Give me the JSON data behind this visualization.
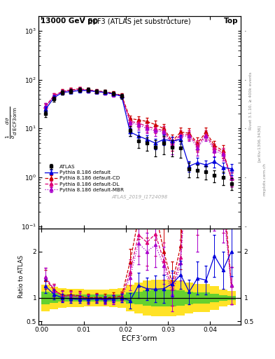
{
  "title_left": "13000 GeV pp",
  "title_right": "Top",
  "plot_title": "ECF3 (ATLAS jet substructure)",
  "xlabel": "ECF3’orm",
  "ylabel_main": "1/σ  dσ/\nd ECF3’orm",
  "ylabel_ratio": "Ratio to ATLAS",
  "right_label_1": "Rivet 3.1.10, ≥ 400k events",
  "right_label_2": "[arXiv:1306.3436]",
  "right_label_3": "mcplots.cern.ch",
  "atlas_label": "ATLAS_2019_I1724098",
  "atlas_x": [
    0.001,
    0.003,
    0.005,
    0.007,
    0.009,
    0.011,
    0.013,
    0.015,
    0.017,
    0.019,
    0.021,
    0.023,
    0.025,
    0.027,
    0.029,
    0.031,
    0.033,
    0.035,
    0.037,
    0.039,
    0.041,
    0.043,
    0.045
  ],
  "atlas_y": [
    20,
    40,
    55,
    58,
    62,
    62,
    58,
    57,
    52,
    46,
    9,
    5.5,
    5.0,
    4.2,
    5.0,
    4.2,
    4.0,
    1.5,
    1.4,
    1.3,
    1.1,
    1.0,
    0.75
  ],
  "atlas_yerr": [
    3,
    5,
    6,
    6,
    6,
    6,
    5,
    5,
    5,
    5,
    2,
    1.5,
    1.5,
    1.5,
    2.0,
    1.5,
    1.5,
    0.5,
    0.4,
    0.4,
    0.3,
    0.3,
    0.2
  ],
  "py_def_x": [
    0.001,
    0.003,
    0.005,
    0.007,
    0.009,
    0.011,
    0.013,
    0.015,
    0.017,
    0.019,
    0.021,
    0.023,
    0.025,
    0.027,
    0.029,
    0.031,
    0.033,
    0.035,
    0.037,
    0.039,
    0.041,
    0.043,
    0.045
  ],
  "py_def_y": [
    25,
    43,
    55,
    57,
    60,
    60,
    57,
    55,
    51,
    46,
    8.5,
    7.0,
    6.0,
    5.0,
    6.0,
    5.5,
    6.0,
    1.7,
    2.0,
    1.8,
    2.1,
    1.6,
    1.5
  ],
  "py_def_yerr": [
    3,
    4,
    5,
    5,
    5,
    5,
    5,
    4,
    4,
    4,
    1.5,
    1.5,
    1.2,
    1.2,
    1.5,
    1.2,
    1.2,
    0.4,
    0.5,
    0.4,
    0.5,
    0.4,
    0.4
  ],
  "py_cd_x": [
    0.001,
    0.003,
    0.005,
    0.007,
    0.009,
    0.011,
    0.013,
    0.015,
    0.017,
    0.019,
    0.021,
    0.023,
    0.025,
    0.027,
    0.029,
    0.031,
    0.033,
    0.035,
    0.037,
    0.039,
    0.041,
    0.043,
    0.045
  ],
  "py_cd_y": [
    28,
    47,
    58,
    62,
    65,
    62,
    59,
    57,
    53,
    48,
    16,
    15,
    14,
    12,
    10,
    5.5,
    8.5,
    8.0,
    5.0,
    8.5,
    4.5,
    3.5,
    0.95
  ],
  "py_cd_yerr": [
    4,
    5,
    6,
    6,
    6,
    6,
    5,
    5,
    5,
    4,
    2.5,
    2.5,
    2.5,
    2.5,
    2.5,
    2.0,
    2.0,
    2.0,
    1.5,
    2.0,
    1.0,
    1.0,
    0.3
  ],
  "py_dl_x": [
    0.001,
    0.003,
    0.005,
    0.007,
    0.009,
    0.011,
    0.013,
    0.015,
    0.017,
    0.019,
    0.021,
    0.023,
    0.025,
    0.027,
    0.029,
    0.031,
    0.033,
    0.035,
    0.037,
    0.039,
    0.041,
    0.043,
    0.045
  ],
  "py_dl_y": [
    29,
    47,
    57,
    61,
    64,
    61,
    58,
    55,
    51,
    47,
    14,
    13,
    11,
    10,
    9.0,
    5.0,
    7.5,
    7.5,
    4.5,
    7.5,
    4.0,
    3.2,
    0.95
  ],
  "py_dl_yerr": [
    4,
    5,
    6,
    6,
    6,
    6,
    5,
    5,
    5,
    4,
    2.5,
    2.5,
    2.5,
    2.0,
    2.0,
    1.5,
    1.5,
    1.5,
    1.2,
    1.5,
    0.8,
    0.8,
    0.3
  ],
  "py_mbr_x": [
    0.001,
    0.003,
    0.005,
    0.007,
    0.009,
    0.011,
    0.013,
    0.015,
    0.017,
    0.019,
    0.021,
    0.023,
    0.025,
    0.027,
    0.029,
    0.031,
    0.033,
    0.035,
    0.037,
    0.039,
    0.041,
    0.043,
    0.045
  ],
  "py_mbr_y": [
    29,
    46,
    57,
    60,
    63,
    60,
    57,
    54,
    50,
    46,
    13,
    12,
    10,
    9.0,
    8.5,
    4.5,
    7.0,
    7.0,
    4.0,
    7.0,
    3.5,
    3.0,
    0.95
  ],
  "py_mbr_yerr": [
    4,
    5,
    6,
    6,
    6,
    6,
    5,
    5,
    5,
    4,
    2.5,
    2.5,
    2.0,
    2.0,
    2.0,
    1.5,
    1.5,
    1.5,
    1.2,
    1.5,
    0.8,
    0.8,
    0.3
  ],
  "yb_edges": [
    0.0,
    0.002,
    0.004,
    0.006,
    0.008,
    0.01,
    0.012,
    0.014,
    0.016,
    0.018,
    0.02,
    0.022,
    0.024,
    0.026,
    0.028,
    0.03,
    0.032,
    0.034,
    0.036,
    0.038,
    0.04,
    0.042,
    0.044,
    0.046
  ],
  "yb_lo": [
    0.72,
    0.76,
    0.79,
    0.81,
    0.81,
    0.82,
    0.82,
    0.82,
    0.81,
    0.79,
    0.72,
    0.67,
    0.62,
    0.6,
    0.6,
    0.6,
    0.62,
    0.67,
    0.7,
    0.7,
    0.75,
    0.82,
    0.85,
    0.85
  ],
  "yb_hi": [
    1.28,
    1.24,
    1.21,
    1.19,
    1.19,
    1.18,
    1.18,
    1.18,
    1.19,
    1.21,
    1.28,
    1.33,
    1.38,
    1.4,
    1.4,
    1.4,
    1.38,
    1.33,
    1.3,
    1.3,
    1.25,
    1.18,
    1.15,
    1.15
  ],
  "gb_lo": [
    0.86,
    0.9,
    0.92,
    0.93,
    0.93,
    0.93,
    0.93,
    0.93,
    0.93,
    0.92,
    0.88,
    0.86,
    0.83,
    0.82,
    0.82,
    0.82,
    0.83,
    0.86,
    0.88,
    0.88,
    0.91,
    0.94,
    0.95,
    0.95
  ],
  "gb_hi": [
    1.14,
    1.1,
    1.08,
    1.07,
    1.07,
    1.07,
    1.07,
    1.07,
    1.07,
    1.08,
    1.12,
    1.14,
    1.17,
    1.18,
    1.18,
    1.18,
    1.17,
    1.14,
    1.12,
    1.12,
    1.09,
    1.06,
    1.05,
    1.05
  ],
  "color_atlas": "#000000",
  "color_default": "#0000dd",
  "color_cd": "#cc0000",
  "color_dl": "#dd0077",
  "color_mbr": "#aa00cc",
  "color_green": "#33cc33",
  "color_yellow": "#ffdd00",
  "main_ylim_lo": 0.09,
  "main_ylim_hi": 2000,
  "ratio_ylim_lo": 0.42,
  "ratio_ylim_hi": 2.5,
  "xlim_lo": -0.0007,
  "xlim_hi": 0.0472
}
